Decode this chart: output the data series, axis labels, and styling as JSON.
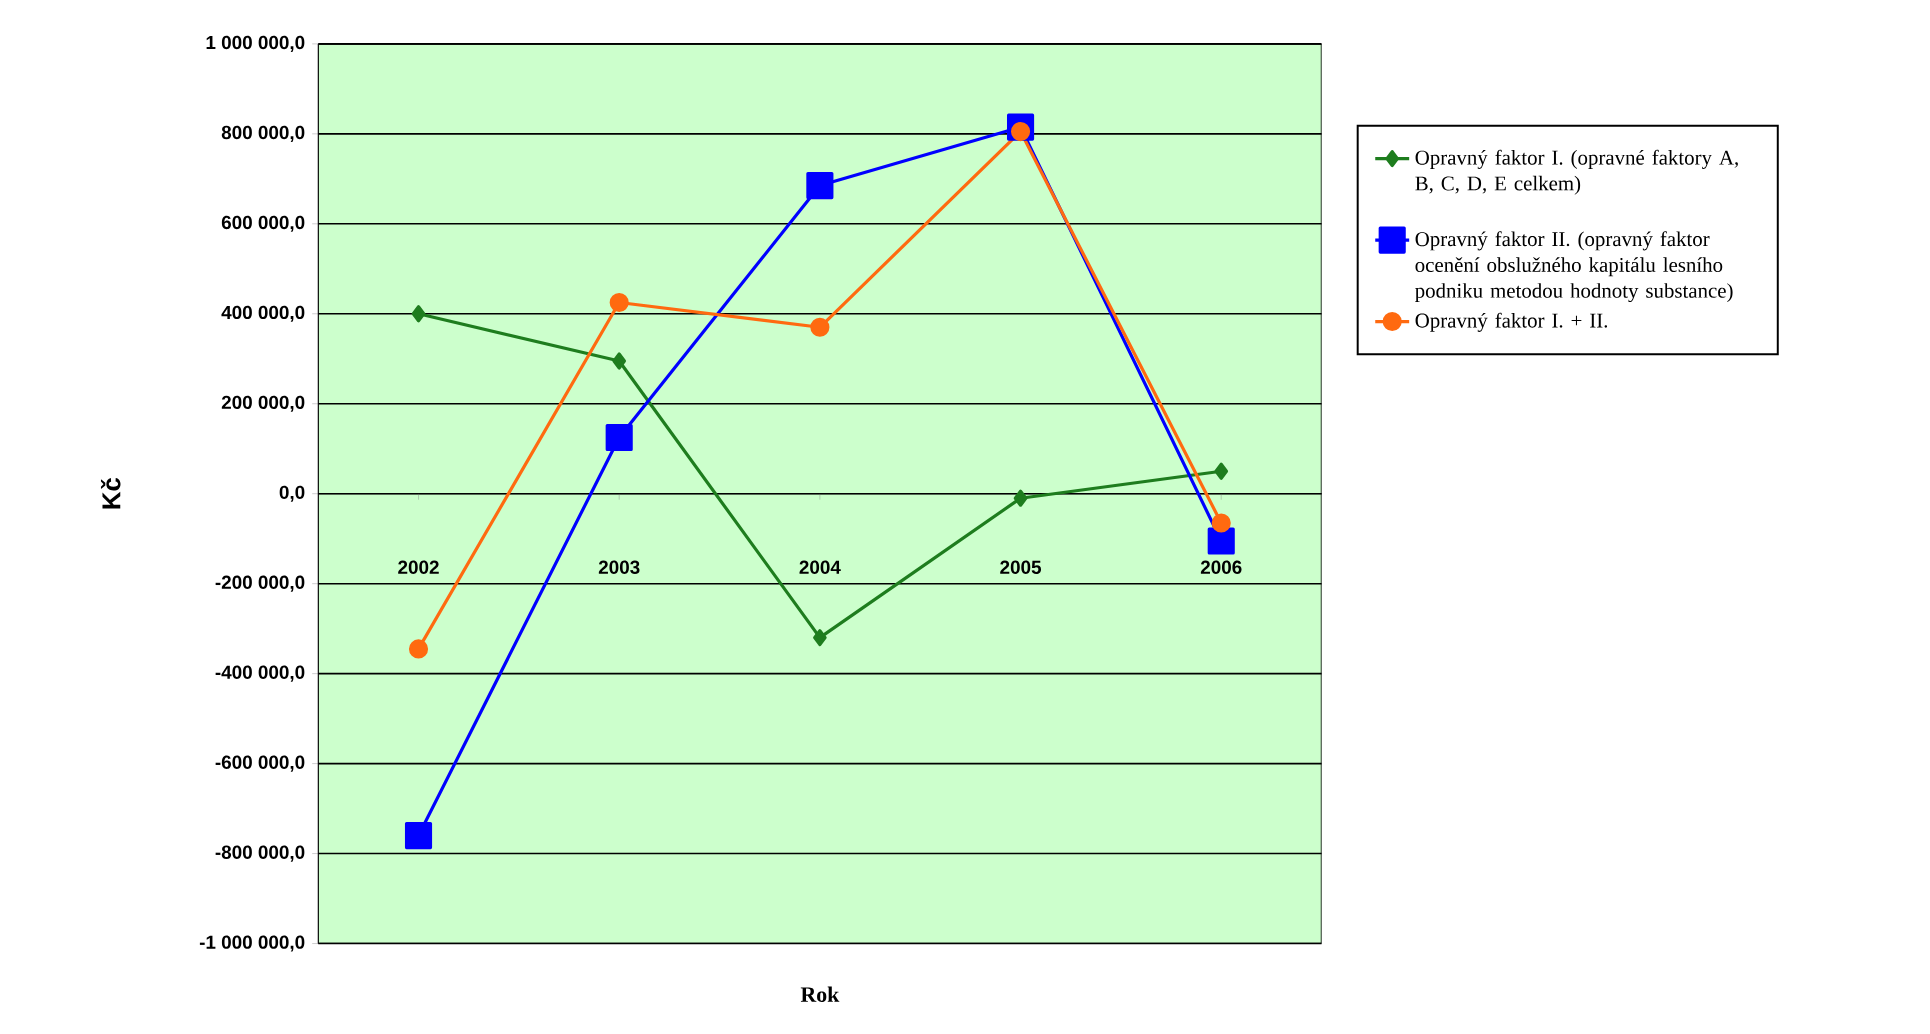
{
  "chart_data": {
    "type": "line",
    "xlabel": "Rok",
    "ylabel": "Kč",
    "categories": [
      "2002",
      "2003",
      "2004",
      "2005",
      "2006"
    ],
    "series": [
      {
        "name": "Opravný faktor I. (opravné faktory A, B, C, D, E celkem)",
        "color": "#1e7d1e",
        "marker": "diamond",
        "values": [
          400000,
          295000,
          -320000,
          -10000,
          50000
        ]
      },
      {
        "name": "Opravný faktor II. (opravný faktor ocenění obslužného kapitálu lesního podniku metodou hodnoty substance)",
        "color": "#0000ff",
        "marker": "square",
        "values": [
          -760000,
          125000,
          685000,
          815000,
          -105000
        ]
      },
      {
        "name": "Opravný faktor I. + II.",
        "color": "#ff6a10",
        "marker": "circle",
        "values": [
          -345000,
          425000,
          370000,
          805000,
          -65000
        ]
      }
    ],
    "ylim": [
      -1000000,
      1000000
    ],
    "yticks": [
      {
        "value": -1000000,
        "label": "-1 000 000,0"
      },
      {
        "value": -800000,
        "label": "-800 000,0"
      },
      {
        "value": -600000,
        "label": "-600 000,0"
      },
      {
        "value": -400000,
        "label": "-400 000,0"
      },
      {
        "value": -200000,
        "label": "-200 000,0"
      },
      {
        "value": 0,
        "label": "0,0"
      },
      {
        "value": 200000,
        "label": "200 000,0"
      },
      {
        "value": 400000,
        "label": "400 000,0"
      },
      {
        "value": 600000,
        "label": "600 000,0"
      },
      {
        "value": 800000,
        "label": "800 000,0"
      },
      {
        "value": 1000000,
        "label": "1 000 000,0"
      }
    ],
    "grid": "y",
    "legend": "right"
  }
}
